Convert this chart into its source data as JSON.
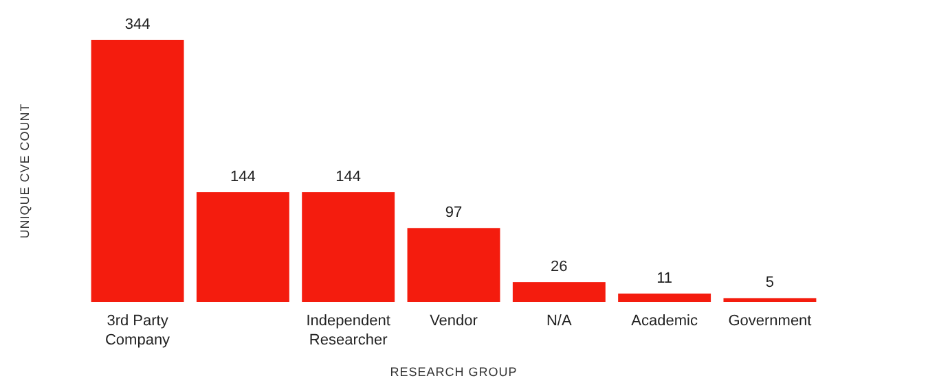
{
  "chart_data": {
    "type": "bar",
    "xlabel": "RESEARCH GROUP",
    "ylabel": "UNIQUE CVE COUNT",
    "categories": [
      "3rd Party Company",
      null,
      "Independent Researcher",
      "Vendor",
      "N/A",
      "Academic",
      "Government"
    ],
    "values": [
      344,
      144,
      144,
      97,
      26,
      11,
      5
    ],
    "color": "#f41c0e",
    "data_labels": true
  }
}
